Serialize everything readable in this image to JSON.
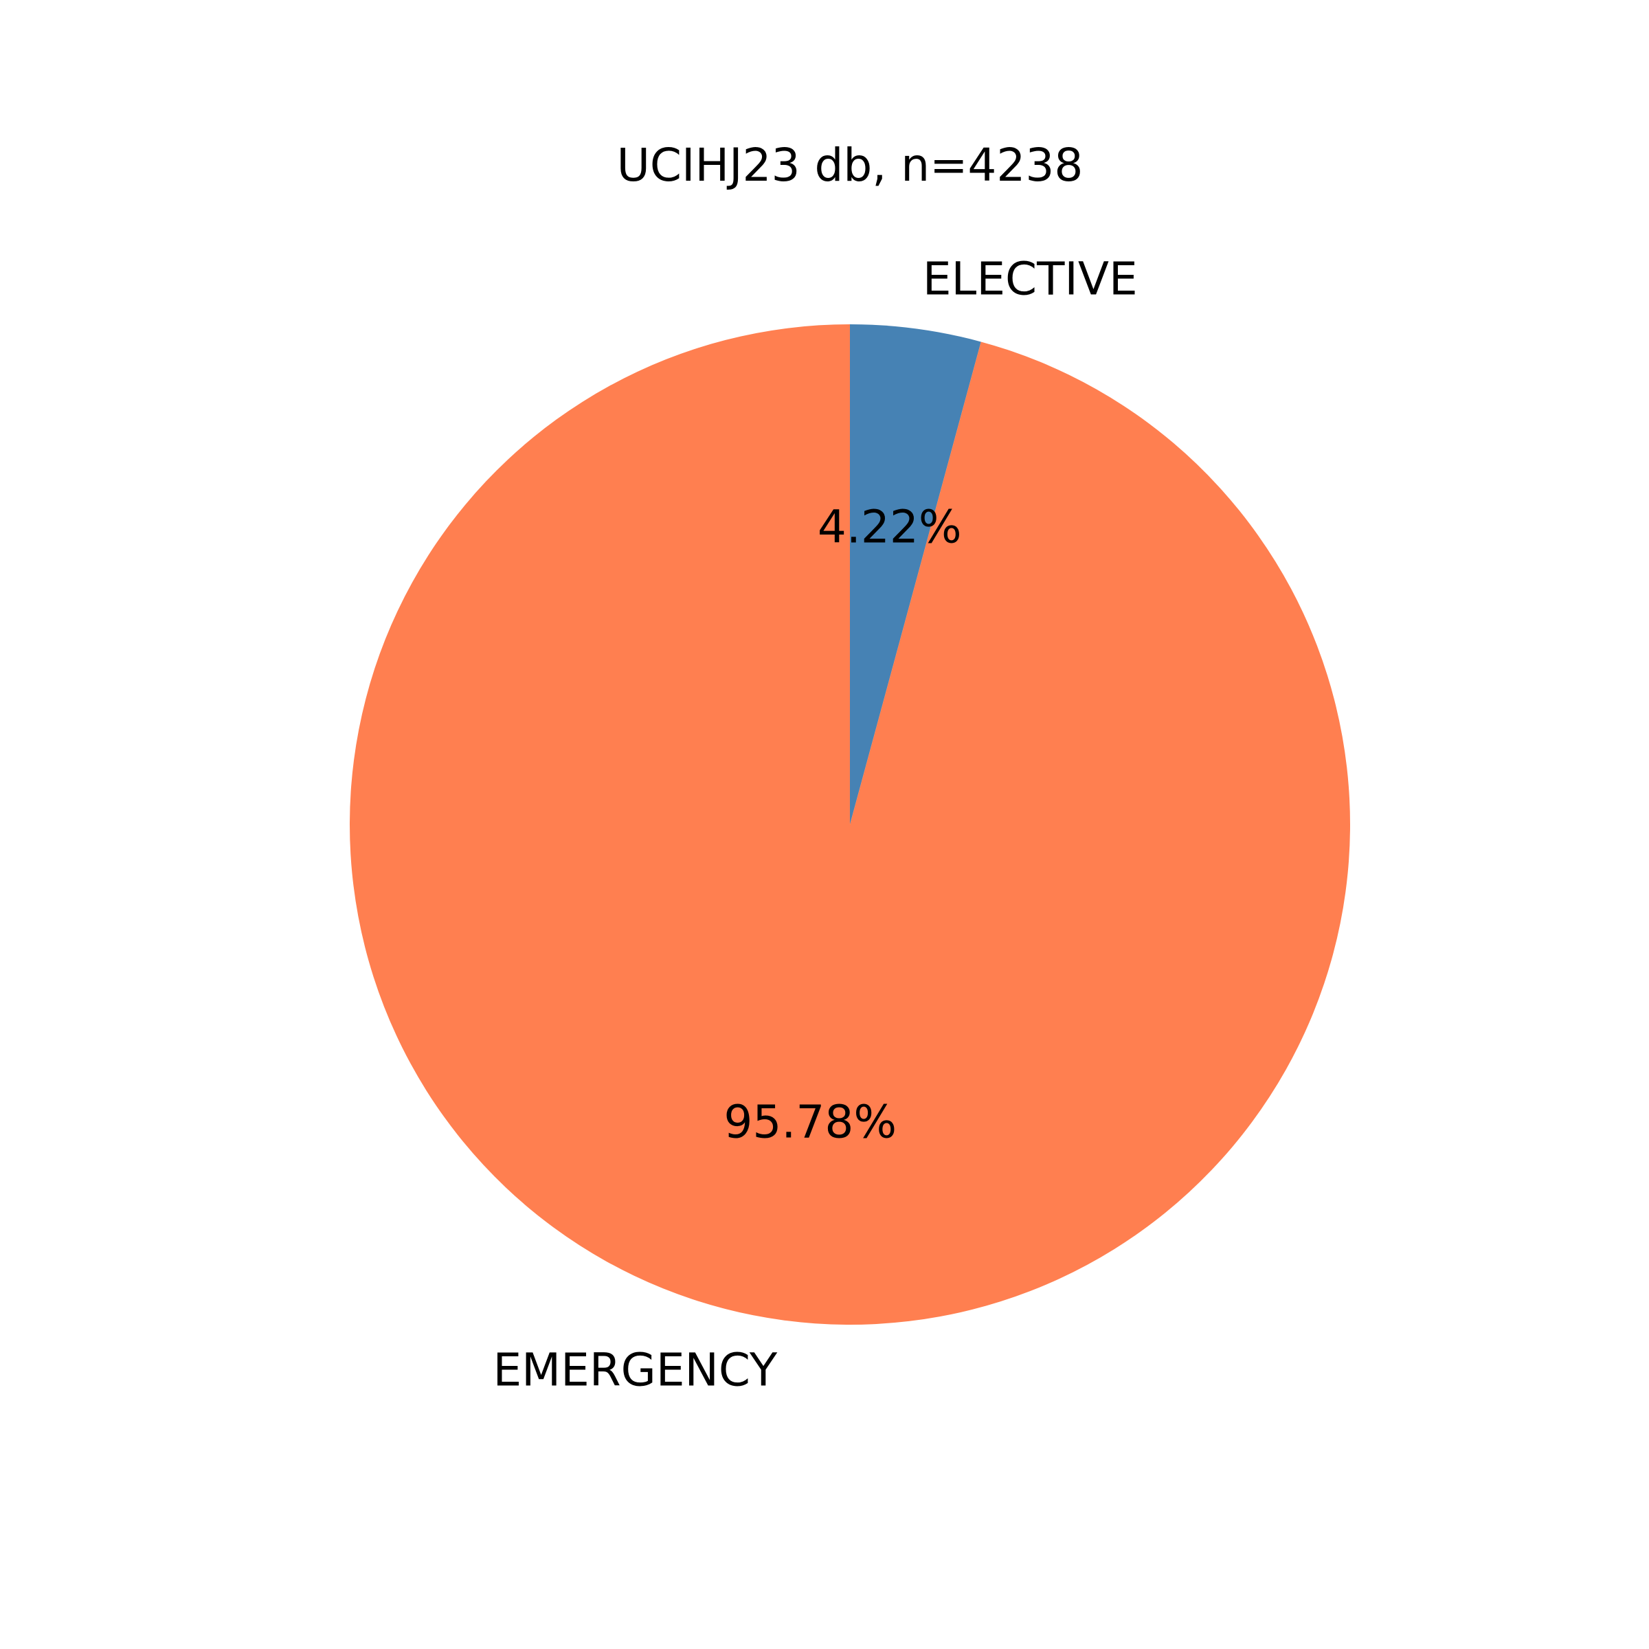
{
  "chart_data": {
    "type": "pie",
    "title": "UCIHJ23 db, n=4238",
    "slices": [
      {
        "label": "ELECTIVE",
        "value": 4.22,
        "pct_label": "4.22%",
        "color": "#4682b4"
      },
      {
        "label": "EMERGENCY",
        "value": 95.78,
        "pct_label": "95.78%",
        "color": "#ff7f50"
      }
    ],
    "start_angle": "12 o'clock",
    "direction": "clockwise"
  }
}
